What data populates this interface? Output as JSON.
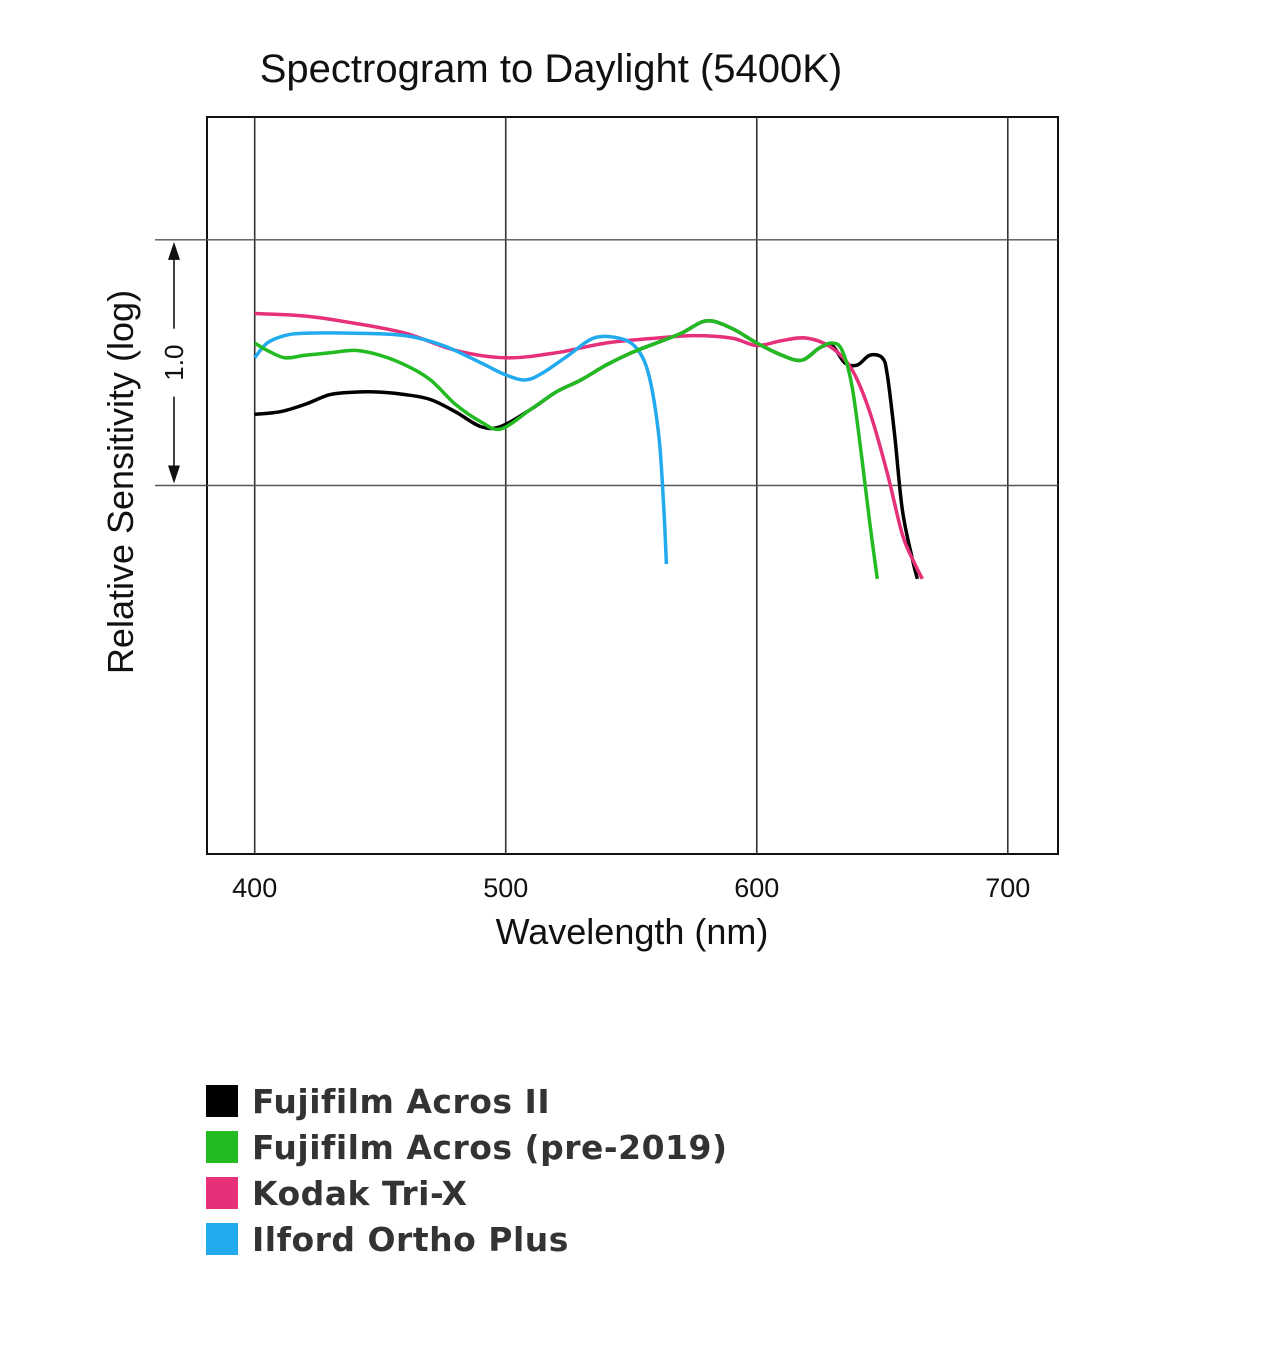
{
  "chart_data": {
    "type": "line",
    "title": "Spectrogram to Daylight (5400K)",
    "xlabel": "Wavelength (nm)",
    "ylabel": "Relative Sensitivity (log)",
    "xlim": [
      381,
      720
    ],
    "ylim": [
      -1.5,
      1.5
    ],
    "x_ticks": [
      400,
      500,
      600,
      700
    ],
    "x_tick_labels": [
      "400",
      "500",
      "600",
      "700"
    ],
    "y_gridlines": [
      0.0,
      1.0
    ],
    "range_annotation": {
      "label": "1.0",
      "from": 0.0,
      "to": 1.0
    },
    "grid": true,
    "series": [
      {
        "name": "Fujifilm Acros II",
        "color": "#000000",
        "points": [
          [
            400,
            0.29
          ],
          [
            410,
            0.3
          ],
          [
            420,
            0.33
          ],
          [
            430,
            0.37
          ],
          [
            440,
            0.38
          ],
          [
            450,
            0.38
          ],
          [
            460,
            0.37
          ],
          [
            470,
            0.35
          ],
          [
            480,
            0.3
          ],
          [
            490,
            0.24
          ],
          [
            498,
            0.24
          ],
          [
            510,
            0.31
          ],
          [
            520,
            0.38
          ],
          [
            530,
            0.43
          ],
          [
            540,
            0.49
          ],
          [
            550,
            0.54
          ],
          [
            560,
            0.58
          ],
          [
            570,
            0.62
          ],
          [
            580,
            0.67
          ],
          [
            590,
            0.64
          ],
          [
            600,
            0.58
          ],
          [
            610,
            0.53
          ],
          [
            618,
            0.51
          ],
          [
            625,
            0.56
          ],
          [
            630,
            0.57
          ],
          [
            635,
            0.5
          ],
          [
            640,
            0.49
          ],
          [
            645,
            0.53
          ],
          [
            650,
            0.52
          ],
          [
            652,
            0.45
          ],
          [
            655,
            0.2
          ],
          [
            658,
            -0.1
          ],
          [
            662,
            -0.3
          ],
          [
            664,
            -0.38
          ]
        ]
      },
      {
        "name": "Fujifilm Acros (pre-2019)",
        "color": "#22bb22",
        "points": [
          [
            400,
            0.58
          ],
          [
            405,
            0.55
          ],
          [
            412,
            0.52
          ],
          [
            420,
            0.53
          ],
          [
            430,
            0.54
          ],
          [
            440,
            0.55
          ],
          [
            450,
            0.53
          ],
          [
            460,
            0.49
          ],
          [
            470,
            0.43
          ],
          [
            480,
            0.33
          ],
          [
            490,
            0.26
          ],
          [
            498,
            0.23
          ],
          [
            510,
            0.31
          ],
          [
            520,
            0.38
          ],
          [
            530,
            0.43
          ],
          [
            540,
            0.49
          ],
          [
            550,
            0.54
          ],
          [
            560,
            0.58
          ],
          [
            570,
            0.62
          ],
          [
            580,
            0.67
          ],
          [
            590,
            0.64
          ],
          [
            600,
            0.58
          ],
          [
            610,
            0.53
          ],
          [
            618,
            0.51
          ],
          [
            625,
            0.56
          ],
          [
            630,
            0.58
          ],
          [
            634,
            0.55
          ],
          [
            638,
            0.4
          ],
          [
            642,
            0.1
          ],
          [
            645,
            -0.15
          ],
          [
            648,
            -0.38
          ]
        ]
      },
      {
        "name": "Kodak Tri-X",
        "color": "#e6307a",
        "points": [
          [
            400,
            0.7
          ],
          [
            420,
            0.69
          ],
          [
            440,
            0.66
          ],
          [
            460,
            0.62
          ],
          [
            480,
            0.55
          ],
          [
            500,
            0.52
          ],
          [
            520,
            0.54
          ],
          [
            540,
            0.58
          ],
          [
            560,
            0.6
          ],
          [
            575,
            0.61
          ],
          [
            590,
            0.6
          ],
          [
            600,
            0.57
          ],
          [
            610,
            0.59
          ],
          [
            620,
            0.6
          ],
          [
            630,
            0.56
          ],
          [
            638,
            0.47
          ],
          [
            645,
            0.3
          ],
          [
            652,
            0.05
          ],
          [
            658,
            -0.2
          ],
          [
            663,
            -0.32
          ],
          [
            666,
            -0.38
          ]
        ]
      },
      {
        "name": "Ilford Ortho Plus",
        "color": "#22aaee",
        "points": [
          [
            400,
            0.52
          ],
          [
            405,
            0.58
          ],
          [
            412,
            0.61
          ],
          [
            420,
            0.62
          ],
          [
            440,
            0.62
          ],
          [
            460,
            0.61
          ],
          [
            475,
            0.57
          ],
          [
            490,
            0.5
          ],
          [
            500,
            0.45
          ],
          [
            508,
            0.43
          ],
          [
            515,
            0.46
          ],
          [
            525,
            0.53
          ],
          [
            535,
            0.6
          ],
          [
            545,
            0.6
          ],
          [
            552,
            0.56
          ],
          [
            557,
            0.45
          ],
          [
            561,
            0.2
          ],
          [
            563,
            -0.1
          ],
          [
            564,
            -0.32
          ]
        ]
      }
    ]
  }
}
